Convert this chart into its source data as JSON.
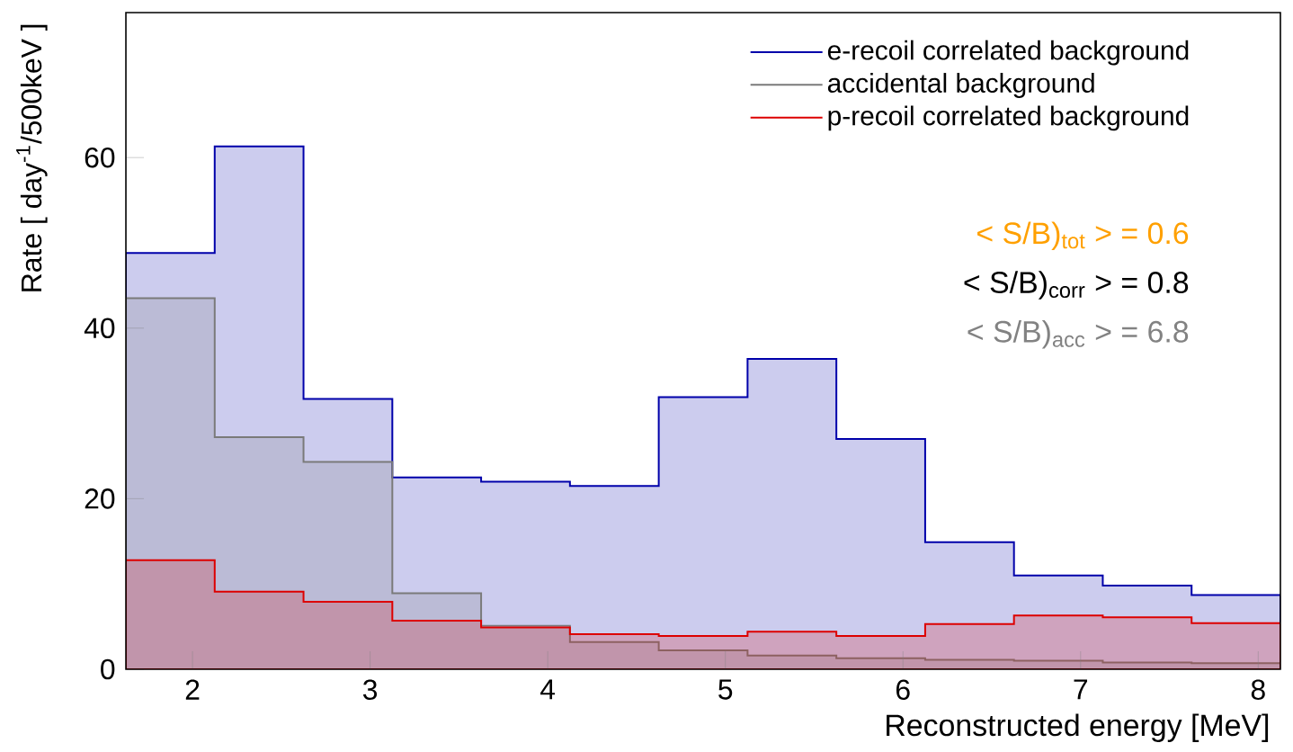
{
  "chart_data": {
    "type": "histogram",
    "xlabel": "Reconstructed energy [MeV]",
    "ylabel": "Rate [ day$^{-1}$/500keV ]",
    "bins": [
      1.625,
      2.125,
      2.625,
      3.125,
      3.625,
      4.125,
      4.625,
      5.125,
      5.625,
      6.125,
      6.625,
      7.125,
      7.625,
      8.125
    ],
    "series": [
      {
        "name": "e-recoil correlated background",
        "color": "#0000aa",
        "values": [
          48.8,
          61.3,
          31.7,
          22.5,
          22.0,
          21.5,
          31.9,
          36.4,
          27.0,
          14.9,
          11.0,
          9.8,
          8.7
        ]
      },
      {
        "name": "accidental background",
        "color": "#7a7a7a",
        "values": [
          43.5,
          27.2,
          24.3,
          8.9,
          5.1,
          3.2,
          2.2,
          1.6,
          1.3,
          1.1,
          1.0,
          0.8,
          0.7
        ]
      },
      {
        "name": "p-recoil correlated background",
        "color": "#dd0000",
        "values": [
          12.8,
          9.1,
          7.9,
          5.7,
          4.9,
          4.1,
          3.9,
          4.4,
          3.9,
          5.3,
          6.3,
          6.1,
          5.4
        ]
      }
    ],
    "xlim": [
      1.625,
      8.125
    ],
    "ylim": [
      0,
      77
    ],
    "xticks": [
      2,
      3,
      4,
      5,
      6,
      7,
      8
    ],
    "yticks": [
      0,
      20,
      40,
      60
    ],
    "legend": "top right",
    "annotations": [
      "< S/B)$_{tot}$ > = 0.6",
      "< S/B)$_{corr}$ > = 0.8",
      "< S/B)$_{acc}$ > = 6.8"
    ]
  }
}
